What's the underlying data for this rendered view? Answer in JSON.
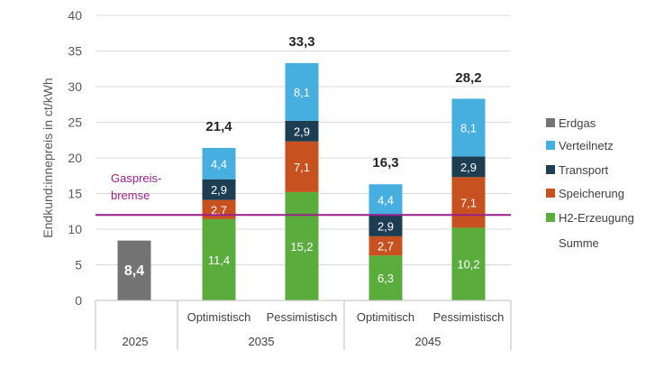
{
  "chart_data": {
    "type": "bar",
    "stacked": true,
    "ylabel": "Endkund:innepreis in ct/kWh",
    "ylim": [
      0,
      40
    ],
    "yticks": [
      0,
      5,
      10,
      15,
      20,
      25,
      30,
      35,
      40
    ],
    "grid": true,
    "legend_position": "right",
    "categories": [
      {
        "label": "",
        "group": "2025"
      },
      {
        "label": "Optimistisch",
        "group": "2035"
      },
      {
        "label": "Pessimistisch",
        "group": "2035"
      },
      {
        "label": "Optimitisch",
        "group": "2045"
      },
      {
        "label": "Pessimistisch",
        "group": "2045"
      }
    ],
    "groups": [
      "2025",
      "2035",
      "2045"
    ],
    "series": [
      {
        "name": "H2-Erzeugung",
        "color": "#5aad3c",
        "values": [
          null,
          11.4,
          15.2,
          6.3,
          10.2
        ],
        "labels": [
          "",
          "11,4",
          "15,2",
          "6,3",
          "10,2"
        ]
      },
      {
        "name": "Speicherung",
        "color": "#c7511f",
        "values": [
          null,
          2.7,
          7.1,
          2.7,
          7.1
        ],
        "labels": [
          "",
          "2,7",
          "7,1",
          "2,7",
          "7,1"
        ]
      },
      {
        "name": "Transport",
        "color": "#1d3d52",
        "values": [
          null,
          2.9,
          2.9,
          2.9,
          2.9
        ],
        "labels": [
          "",
          "2,9",
          "2,9",
          "2,9",
          "2,9"
        ]
      },
      {
        "name": "Verteilnetz",
        "color": "#47aee0",
        "values": [
          null,
          4.4,
          8.1,
          4.4,
          8.1
        ],
        "labels": [
          "",
          "4,4",
          "8,1",
          "4,4",
          "8,1"
        ]
      },
      {
        "name": "Erdgas",
        "color": "#737373",
        "values": [
          8.4,
          null,
          null,
          null,
          null
        ],
        "labels": [
          "8,4",
          "",
          "",
          "",
          ""
        ]
      }
    ],
    "totals": [
      null,
      21.4,
      33.3,
      16.3,
      28.2
    ],
    "total_labels": [
      "",
      "21,4",
      "33,3",
      "16,3",
      "28,2"
    ],
    "legend": [
      {
        "name": "Erdgas",
        "color": "#737373"
      },
      {
        "name": "Verteilnetz",
        "color": "#47aee0"
      },
      {
        "name": "Transport",
        "color": "#1d3d52"
      },
      {
        "name": "Speicherung",
        "color": "#c7511f"
      },
      {
        "name": "H2-Erzeugung",
        "color": "#5aad3c"
      },
      {
        "name": "Summe",
        "color": null
      }
    ],
    "reference_line": {
      "value": 12,
      "label_lines": [
        "Gaspreis-",
        "bremse"
      ],
      "color": "#9b1f8a"
    }
  }
}
